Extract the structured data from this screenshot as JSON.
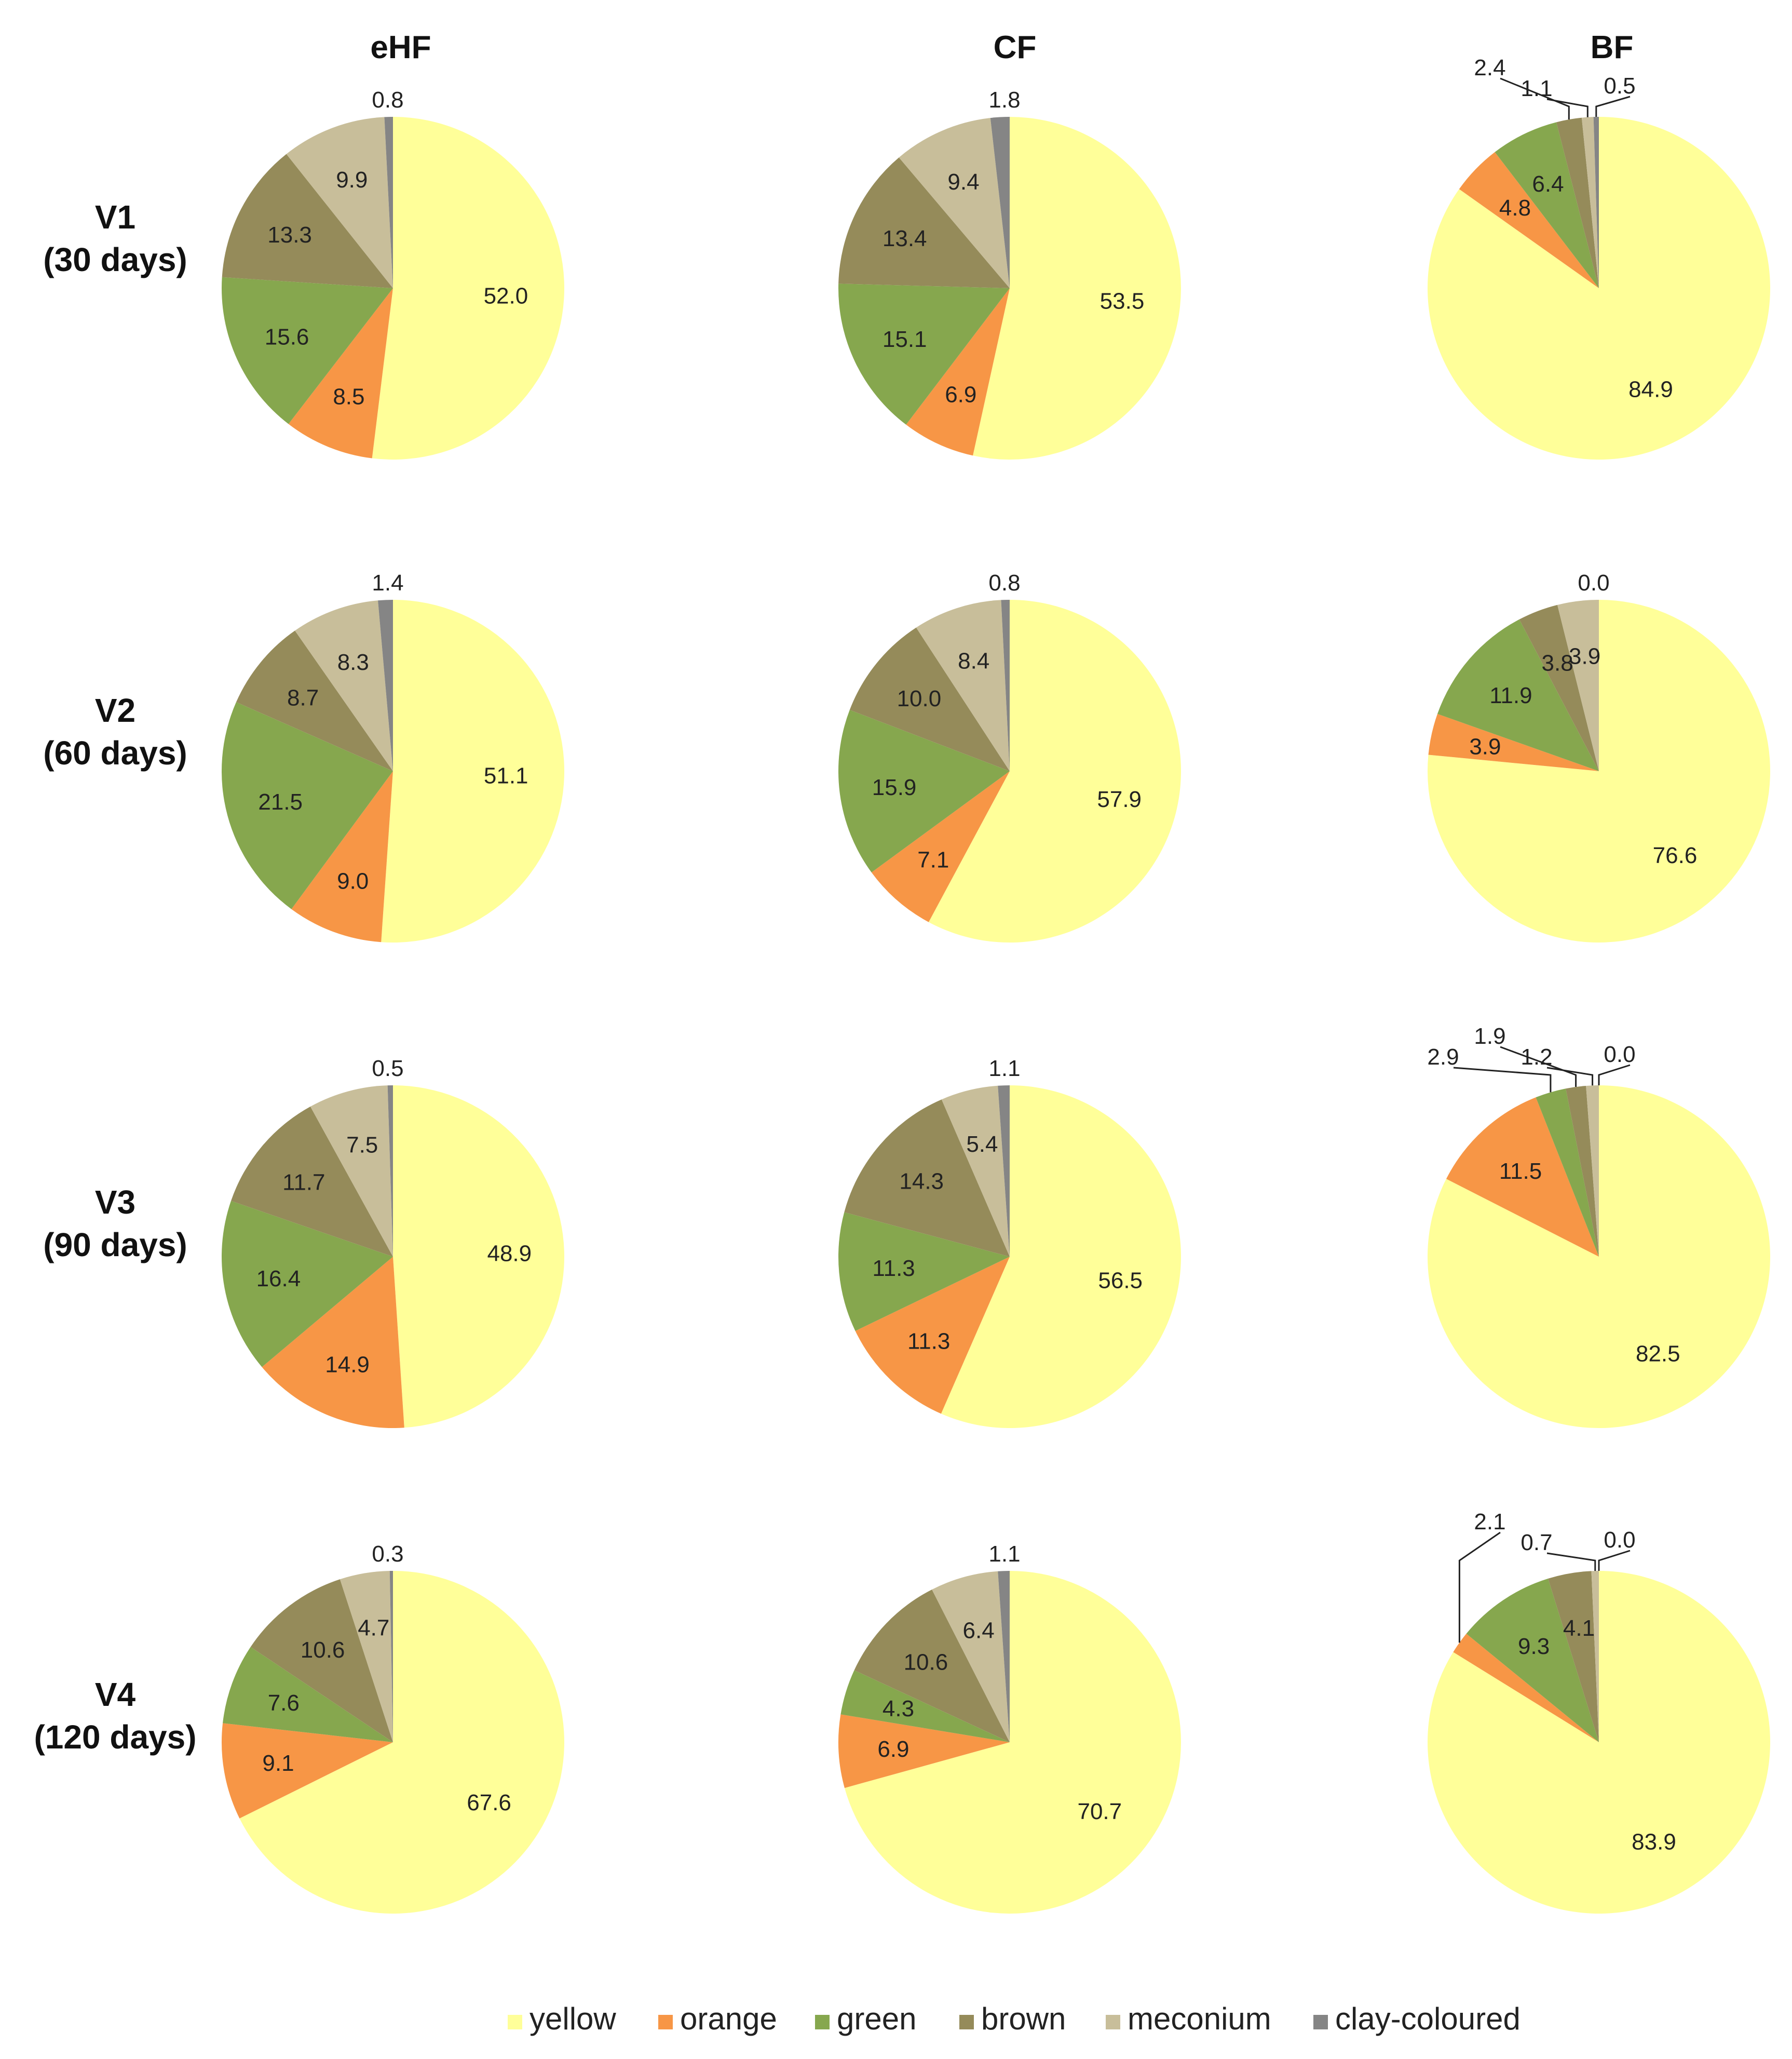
{
  "chart_data": {
    "type": "pie",
    "columns": [
      "eHF",
      "CF",
      "BF"
    ],
    "rows": [
      {
        "label_line1": "V1",
        "label_line2": "(30 days)"
      },
      {
        "label_line1": "V2",
        "label_line2": "(60 days)"
      },
      {
        "label_line1": "V3",
        "label_line2": "(90 days)"
      },
      {
        "label_line1": "V4",
        "label_line2": "(120 days)"
      }
    ],
    "categories": [
      "yellow",
      "orange",
      "green",
      "brown",
      "meconium",
      "clay-coloured"
    ],
    "colors": [
      "#FFFF99",
      "#F79646",
      "#86A74E",
      "#958B5A",
      "#C8BE9A",
      "#858585"
    ],
    "pies": [
      {
        "row": 0,
        "col": 0,
        "values": [
          52.0,
          8.5,
          15.6,
          13.3,
          9.9,
          0.8
        ],
        "labels": [
          "52.0",
          "8.5",
          "15.6",
          "13.3",
          "9.9",
          "0.8"
        ]
      },
      {
        "row": 0,
        "col": 1,
        "values": [
          53.5,
          6.9,
          15.1,
          13.4,
          9.4,
          1.8
        ],
        "labels": [
          "53.5",
          "6.9",
          "15.1",
          "13.4",
          "9.4",
          "1.8"
        ]
      },
      {
        "row": 0,
        "col": 2,
        "values": [
          84.9,
          4.8,
          6.4,
          2.4,
          1.1,
          0.5
        ],
        "labels": [
          "84.9",
          "4.8",
          "6.4",
          "2.4",
          "1.1",
          "0.5"
        ]
      },
      {
        "row": 1,
        "col": 0,
        "values": [
          51.1,
          9.0,
          21.5,
          8.7,
          8.3,
          1.4
        ],
        "labels": [
          "51.1",
          "9.0",
          "21.5",
          "8.7",
          "8.3",
          "1.4"
        ]
      },
      {
        "row": 1,
        "col": 1,
        "values": [
          57.9,
          7.1,
          15.9,
          10.0,
          8.4,
          0.8
        ],
        "labels": [
          "57.9",
          "7.1",
          "15.9",
          "10.0",
          "8.4",
          "0.8"
        ]
      },
      {
        "row": 1,
        "col": 2,
        "values": [
          76.6,
          3.9,
          11.9,
          3.8,
          3.9,
          0.0
        ],
        "labels": [
          "76.6",
          "3.9",
          "11.9",
          "3.8",
          "3.9",
          "0.0"
        ]
      },
      {
        "row": 2,
        "col": 0,
        "values": [
          48.9,
          14.9,
          16.4,
          11.7,
          7.5,
          0.5
        ],
        "labels": [
          "48.9",
          "14.9",
          "16.4",
          "11.7",
          "7.5",
          "0.5"
        ]
      },
      {
        "row": 2,
        "col": 1,
        "values": [
          56.5,
          11.3,
          11.3,
          14.3,
          5.4,
          1.1
        ],
        "labels": [
          "56.5",
          "11.3",
          "11.3",
          "14.3",
          "5.4",
          "1.1"
        ]
      },
      {
        "row": 2,
        "col": 2,
        "values": [
          82.5,
          11.5,
          2.9,
          1.9,
          1.2,
          0.0
        ],
        "labels": [
          "82.5",
          "11.5",
          "2.9",
          "1.9",
          "1.2",
          "0.0"
        ]
      },
      {
        "row": 3,
        "col": 0,
        "values": [
          67.6,
          9.1,
          7.6,
          10.6,
          4.7,
          0.3
        ],
        "labels": [
          "67.6",
          "9.1",
          "7.6",
          "10.6",
          "4.7",
          "0.3"
        ]
      },
      {
        "row": 3,
        "col": 1,
        "values": [
          70.7,
          6.9,
          4.3,
          10.6,
          6.4,
          1.1
        ],
        "labels": [
          "70.7",
          "6.9",
          "4.3",
          "10.6",
          "6.4",
          "1.1"
        ]
      },
      {
        "row": 3,
        "col": 2,
        "values": [
          83.9,
          2.1,
          9.3,
          4.1,
          0.7,
          0.0
        ],
        "labels": [
          "83.9",
          "2.1",
          "9.3",
          "4.1",
          "0.7",
          "0.0"
        ]
      }
    ],
    "legend_position": "bottom-center"
  }
}
